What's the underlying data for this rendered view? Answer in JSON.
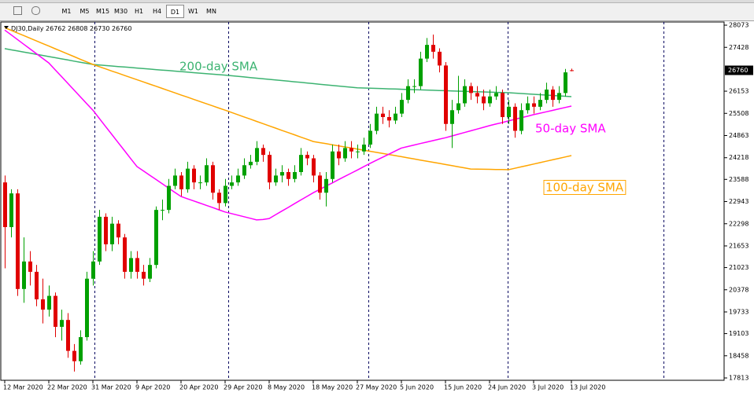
{
  "toolbar": {
    "timeframes": [
      "M1",
      "M5",
      "M15",
      "M30",
      "H1",
      "H4",
      "D1",
      "W1",
      "MN"
    ],
    "active_index": 6
  },
  "chart_data": {
    "type": "candlestick",
    "symbol": "DJ30,Daily",
    "categories": [
      "12 Mar 2020",
      null,
      null,
      null,
      null,
      null,
      null,
      "22 Mar 2020",
      null,
      null,
      null,
      null,
      null,
      null,
      "31 Mar 2020",
      null,
      null,
      null,
      null,
      null,
      null,
      "9 Apr 2020",
      null,
      null,
      null,
      null,
      null,
      null,
      "20 Apr 2020",
      null,
      null,
      null,
      null,
      null,
      null,
      "29 Apr 2020",
      null,
      null,
      null,
      null,
      null,
      null,
      "8 May 2020",
      null,
      null,
      null,
      null,
      null,
      null,
      "18 May 2020",
      null,
      null,
      null,
      null,
      null,
      null,
      "27 May 2020",
      null,
      null,
      null,
      null,
      null,
      null,
      "5 Jun 2020",
      null,
      null,
      null,
      null,
      null,
      null,
      "15 Jun 2020",
      null,
      null,
      null,
      null,
      null,
      null,
      "24 Jun 2020",
      null,
      null,
      null,
      null,
      null,
      null,
      "3 Jul 2020",
      null,
      null,
      null,
      null,
      null,
      "13 Jul 2020"
    ],
    "open": [
      23500,
      22200,
      23180,
      20400,
      21200,
      20900,
      20100,
      19800,
      20200,
      19300,
      19500,
      18600,
      18300,
      19000,
      20700,
      21200,
      22500,
      21700,
      22300,
      21900,
      20900,
      21300,
      20900,
      20700,
      21100,
      22700,
      22700,
      23400,
      23700,
      23300,
      23900,
      23500,
      23500,
      24000,
      23200,
      22900,
      23400,
      23500,
      23700,
      24000,
      24100,
      24500,
      24300,
      23500,
      23700,
      23800,
      23600,
      23800,
      24300,
      24200,
      23700,
      23200,
      23600,
      24400,
      24200,
      24500,
      24400,
      24400,
      24600,
      25000,
      25500,
      25400,
      25300,
      25500,
      25900,
      26300,
      26300,
      27100,
      27500,
      27300,
      26900,
      25200,
      25600,
      25800,
      26300,
      26100,
      26000,
      25800,
      26000,
      26100,
      25400,
      25700,
      25000,
      25600,
      25800,
      25700,
      25900,
      26200,
      25900,
      26100,
      26762
    ],
    "high": [
      23700,
      23300,
      23300,
      21900,
      21500,
      21100,
      20700,
      20500,
      20300,
      19800,
      19700,
      18800,
      19200,
      20900,
      21500,
      22700,
      22600,
      22500,
      22400,
      22000,
      21500,
      21500,
      21100,
      21300,
      22800,
      23000,
      23600,
      23900,
      23800,
      24100,
      24000,
      23700,
      24200,
      24100,
      23300,
      23600,
      23700,
      23900,
      24200,
      24300,
      24700,
      24600,
      24400,
      23900,
      24000,
      23900,
      24000,
      24500,
      24400,
      24300,
      23800,
      23800,
      24600,
      24600,
      24700,
      24700,
      24600,
      24800,
      25200,
      25700,
      25700,
      25600,
      25700,
      26100,
      26500,
      26500,
      27300,
      27700,
      27800,
      27400,
      27000,
      25900,
      26600,
      26500,
      26400,
      26300,
      26200,
      26200,
      26300,
      26200,
      25900,
      25800,
      25800,
      26000,
      26000,
      26100,
      26400,
      26300,
      26300,
      26800,
      26808
    ],
    "low": [
      21000,
      21900,
      20200,
      20000,
      20500,
      19900,
      19400,
      19600,
      19000,
      18900,
      18400,
      18000,
      18200,
      18900,
      20500,
      21100,
      21500,
      21500,
      21700,
      20700,
      20700,
      20700,
      20500,
      20600,
      21000,
      22400,
      22600,
      23300,
      23100,
      23200,
      23300,
      23300,
      23400,
      23000,
      22700,
      22800,
      23300,
      23400,
      23600,
      23900,
      24000,
      24100,
      23300,
      23400,
      23500,
      23400,
      23500,
      23700,
      24000,
      23500,
      23000,
      22800,
      23500,
      24000,
      24100,
      24200,
      24200,
      24300,
      24500,
      24900,
      25200,
      25100,
      25200,
      25400,
      25800,
      26100,
      26200,
      27000,
      27100,
      26700,
      25000,
      24500,
      25500,
      25700,
      25900,
      25800,
      25600,
      25700,
      25900,
      25200,
      25200,
      24800,
      24900,
      25500,
      25500,
      25600,
      25800,
      25700,
      25800,
      26000,
      26730
    ],
    "close": [
      22200,
      23180,
      20400,
      21200,
      20900,
      20100,
      19800,
      20200,
      19300,
      19500,
      18600,
      18300,
      19000,
      20700,
      21200,
      22500,
      21700,
      22300,
      21900,
      20900,
      21300,
      20900,
      20700,
      21100,
      22700,
      22700,
      23400,
      23700,
      23300,
      23900,
      23500,
      23500,
      24000,
      23200,
      22900,
      23400,
      23500,
      23700,
      24000,
      24100,
      24500,
      24300,
      23500,
      23700,
      23800,
      23600,
      23800,
      24300,
      24200,
      23700,
      23200,
      23600,
      24400,
      24200,
      24500,
      24400,
      24400,
      24600,
      25000,
      25500,
      25400,
      25300,
      25500,
      25900,
      26300,
      26300,
      27100,
      27500,
      27300,
      26900,
      25200,
      25600,
      25800,
      26300,
      26100,
      26000,
      25800,
      26000,
      26100,
      25400,
      25700,
      25000,
      25600,
      25800,
      25700,
      25900,
      26200,
      25900,
      26100,
      26700,
      26760
    ],
    "up_color": "#00a000",
    "down_color": "#e00000",
    "series": [
      {
        "name": "200-day SMA",
        "color": "#3cb371",
        "values": [
          27390,
          27357,
          27324,
          27291,
          27259,
          27226,
          27193,
          27160,
          27127,
          27094,
          27061,
          27028,
          26996,
          26963,
          26930,
          26915,
          26900,
          26885,
          26870,
          26856,
          26841,
          26826,
          26811,
          26796,
          26781,
          26767,
          26752,
          26737,
          26722,
          26707,
          26692,
          26678,
          26663,
          26648,
          26633,
          26620,
          26602,
          26585,
          26567,
          26550,
          26532,
          26514,
          26497,
          26479,
          26462,
          26444,
          26426,
          26409,
          26391,
          26374,
          26356,
          26338,
          26321,
          26303,
          26286,
          26268,
          26250,
          26245,
          26239,
          26233,
          26227,
          26221,
          26215,
          26209,
          26203,
          26197,
          26191,
          26185,
          26179,
          26173,
          26167,
          26161,
          26155,
          26149,
          26143,
          26137,
          26131,
          26125,
          26119,
          26113,
          26108,
          26097,
          26085,
          26074,
          26062,
          26051,
          26040,
          26028,
          26017,
          26005,
          25994
        ]
      },
      {
        "name": "100-day SMA",
        "color": "#ffa500",
        "values": [
          28000,
          27924,
          27847,
          27771,
          27694,
          27618,
          27541,
          27465,
          27389,
          27312,
          27236,
          27159,
          27083,
          27006,
          26930,
          26867,
          26803,
          26740,
          26677,
          26613,
          26550,
          26487,
          26423,
          26360,
          26297,
          26233,
          26170,
          26107,
          26043,
          25980,
          25917,
          25853,
          25790,
          25727,
          25663,
          25600,
          25535,
          25470,
          25405,
          25340,
          25275,
          25210,
          25145,
          25080,
          25015,
          24950,
          24885,
          24820,
          24755,
          24690,
          24658,
          24627,
          24595,
          24564,
          24532,
          24501,
          24469,
          24438,
          24406,
          24375,
          24343,
          24312,
          24280,
          24248,
          24215,
          24183,
          24150,
          24118,
          24085,
          24053,
          24020,
          23988,
          23955,
          23923,
          23890,
          23887,
          23883,
          23880,
          23877,
          23873,
          23870,
          23911,
          23952,
          23993,
          24034,
          24075,
          24116,
          24157,
          24198,
          24239,
          24280
        ]
      },
      {
        "name": "50-day SMA",
        "color": "#ff00ff",
        "values": [
          27930,
          27794,
          27657,
          27521,
          27385,
          27248,
          27112,
          26975,
          26779,
          26582,
          26386,
          26189,
          25993,
          25796,
          25600,
          25366,
          25131,
          24897,
          24663,
          24429,
          24194,
          23960,
          23836,
          23711,
          23587,
          23463,
          23339,
          23214,
          23090,
          23026,
          22961,
          22897,
          22833,
          22769,
          22704,
          22640,
          22594,
          22548,
          22502,
          22456,
          22410,
          22420,
          22450,
          22557,
          22664,
          22771,
          22879,
          22986,
          23093,
          23200,
          23294,
          23389,
          23483,
          23578,
          23672,
          23767,
          23861,
          23956,
          24050,
          24140,
          24230,
          24320,
          24410,
          24500,
          24543,
          24586,
          24629,
          24671,
          24714,
          24757,
          24800,
          24850,
          24900,
          24950,
          25000,
          25050,
          25100,
          25150,
          25196,
          25241,
          25287,
          25333,
          25379,
          25424,
          25470,
          25512,
          25553,
          25595,
          25637,
          25678,
          25720
        ]
      }
    ],
    "ylim": [
      17745,
      28165
    ],
    "yticks": [
      17813,
      18458,
      19103,
      19733,
      20378,
      21023,
      21653,
      22298,
      22943,
      23588,
      24218,
      24863,
      25508,
      26153,
      27428,
      28073
    ],
    "grid": false
  }
}
